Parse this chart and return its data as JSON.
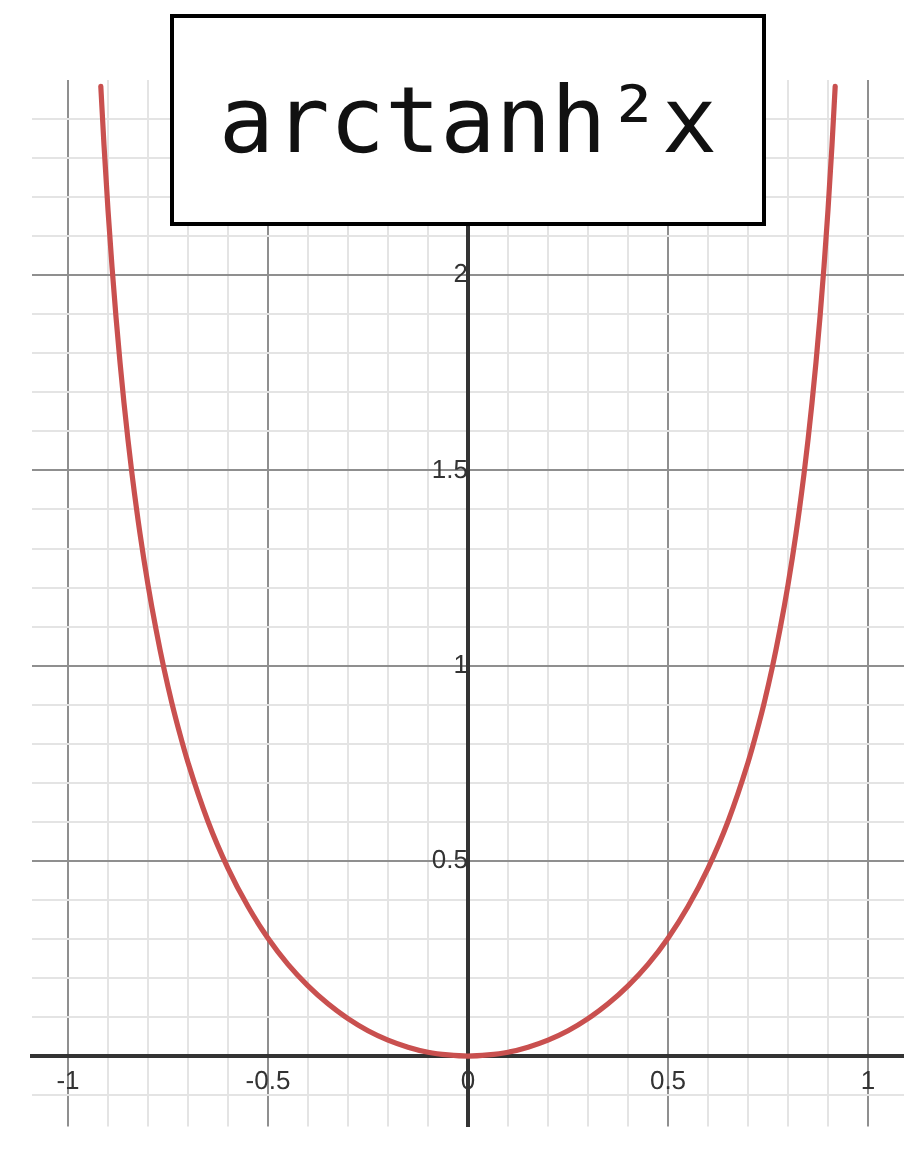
{
  "chart_data": {
    "type": "line",
    "title": "arctanh²x",
    "xlim": [
      -1.09,
      1.09
    ],
    "ylim": [
      -0.18,
      2.5
    ],
    "xticks": [
      -1,
      {
        "value": -0.9,
        "label": null
      },
      {
        "value": -0.8,
        "label": null
      },
      {
        "value": -0.7,
        "label": null
      },
      {
        "value": -0.6,
        "label": null
      },
      -0.5,
      {
        "value": -0.4,
        "label": null
      },
      {
        "value": -0.3,
        "label": null
      },
      {
        "value": -0.2,
        "label": null
      },
      {
        "value": -0.1,
        "label": null
      },
      0,
      {
        "value": 0.1,
        "label": null
      },
      {
        "value": 0.2,
        "label": null
      },
      {
        "value": 0.3,
        "label": null
      },
      {
        "value": 0.4,
        "label": null
      },
      0.5,
      {
        "value": 0.6,
        "label": null
      },
      {
        "value": 0.7,
        "label": null
      },
      {
        "value": 0.8,
        "label": null
      },
      {
        "value": 0.9,
        "label": null
      },
      1
    ],
    "yticks": [
      {
        "value": -0.1,
        "label": null
      },
      {
        "value": 0,
        "label": null
      },
      {
        "value": 0.1,
        "label": null
      },
      {
        "value": 0.2,
        "label": null
      },
      {
        "value": 0.3,
        "label": null
      },
      {
        "value": 0.4,
        "label": null
      },
      0.5,
      {
        "value": 0.6,
        "label": null
      },
      {
        "value": 0.7,
        "label": null
      },
      {
        "value": 0.8,
        "label": null
      },
      {
        "value": 0.9,
        "label": null
      },
      1,
      {
        "value": 1.1,
        "label": null
      },
      {
        "value": 1.2,
        "label": null
      },
      {
        "value": 1.3,
        "label": null
      },
      {
        "value": 1.4,
        "label": null
      },
      1.5,
      {
        "value": 1.6,
        "label": null
      },
      {
        "value": 1.7,
        "label": null
      },
      {
        "value": 1.8,
        "label": null
      },
      {
        "value": 1.9,
        "label": null
      },
      2,
      {
        "value": 2.1,
        "label": null
      },
      {
        "value": 2.2,
        "label": null
      },
      {
        "value": 2.3,
        "label": null
      },
      {
        "value": 2.4,
        "label": null
      }
    ],
    "grid": true,
    "marker": "none",
    "line_style": "solid",
    "series": [
      {
        "color": "#c9504f",
        "x": [
          -0.918,
          -0.91,
          -0.9,
          -0.89,
          -0.88,
          -0.87,
          -0.86,
          -0.85,
          -0.84,
          -0.82,
          -0.8,
          -0.78,
          -0.76,
          -0.74,
          -0.72,
          -0.7,
          -0.65,
          -0.6,
          -0.55,
          -0.5,
          -0.45,
          -0.4,
          -0.35,
          -0.3,
          -0.25,
          -0.2,
          -0.15,
          -0.1,
          -0.05,
          0,
          0.05,
          0.1,
          0.15,
          0.2,
          0.25,
          0.3,
          0.35,
          0.4,
          0.45,
          0.5,
          0.55,
          0.6,
          0.65,
          0.7,
          0.72,
          0.74,
          0.76,
          0.78,
          0.8,
          0.82,
          0.84,
          0.85,
          0.86,
          0.87,
          0.88,
          0.89,
          0.9,
          0.91,
          0.918
        ],
        "values": [
          2.484,
          2.333,
          2.167,
          2.022,
          1.893,
          1.777,
          1.673,
          1.578,
          1.491,
          1.338,
          1.207,
          1.093,
          0.992,
          0.903,
          0.824,
          0.752,
          0.601,
          0.481,
          0.383,
          0.302,
          0.235,
          0.18,
          0.134,
          0.096,
          0.065,
          0.041,
          0.023,
          0.01,
          0.003,
          0,
          0.003,
          0.01,
          0.023,
          0.041,
          0.065,
          0.096,
          0.134,
          0.18,
          0.235,
          0.302,
          0.383,
          0.481,
          0.601,
          0.752,
          0.824,
          0.903,
          0.992,
          1.093,
          1.207,
          1.338,
          1.491,
          1.578,
          1.673,
          1.777,
          1.893,
          2.022,
          2.167,
          2.333,
          2.484
        ]
      }
    ]
  }
}
